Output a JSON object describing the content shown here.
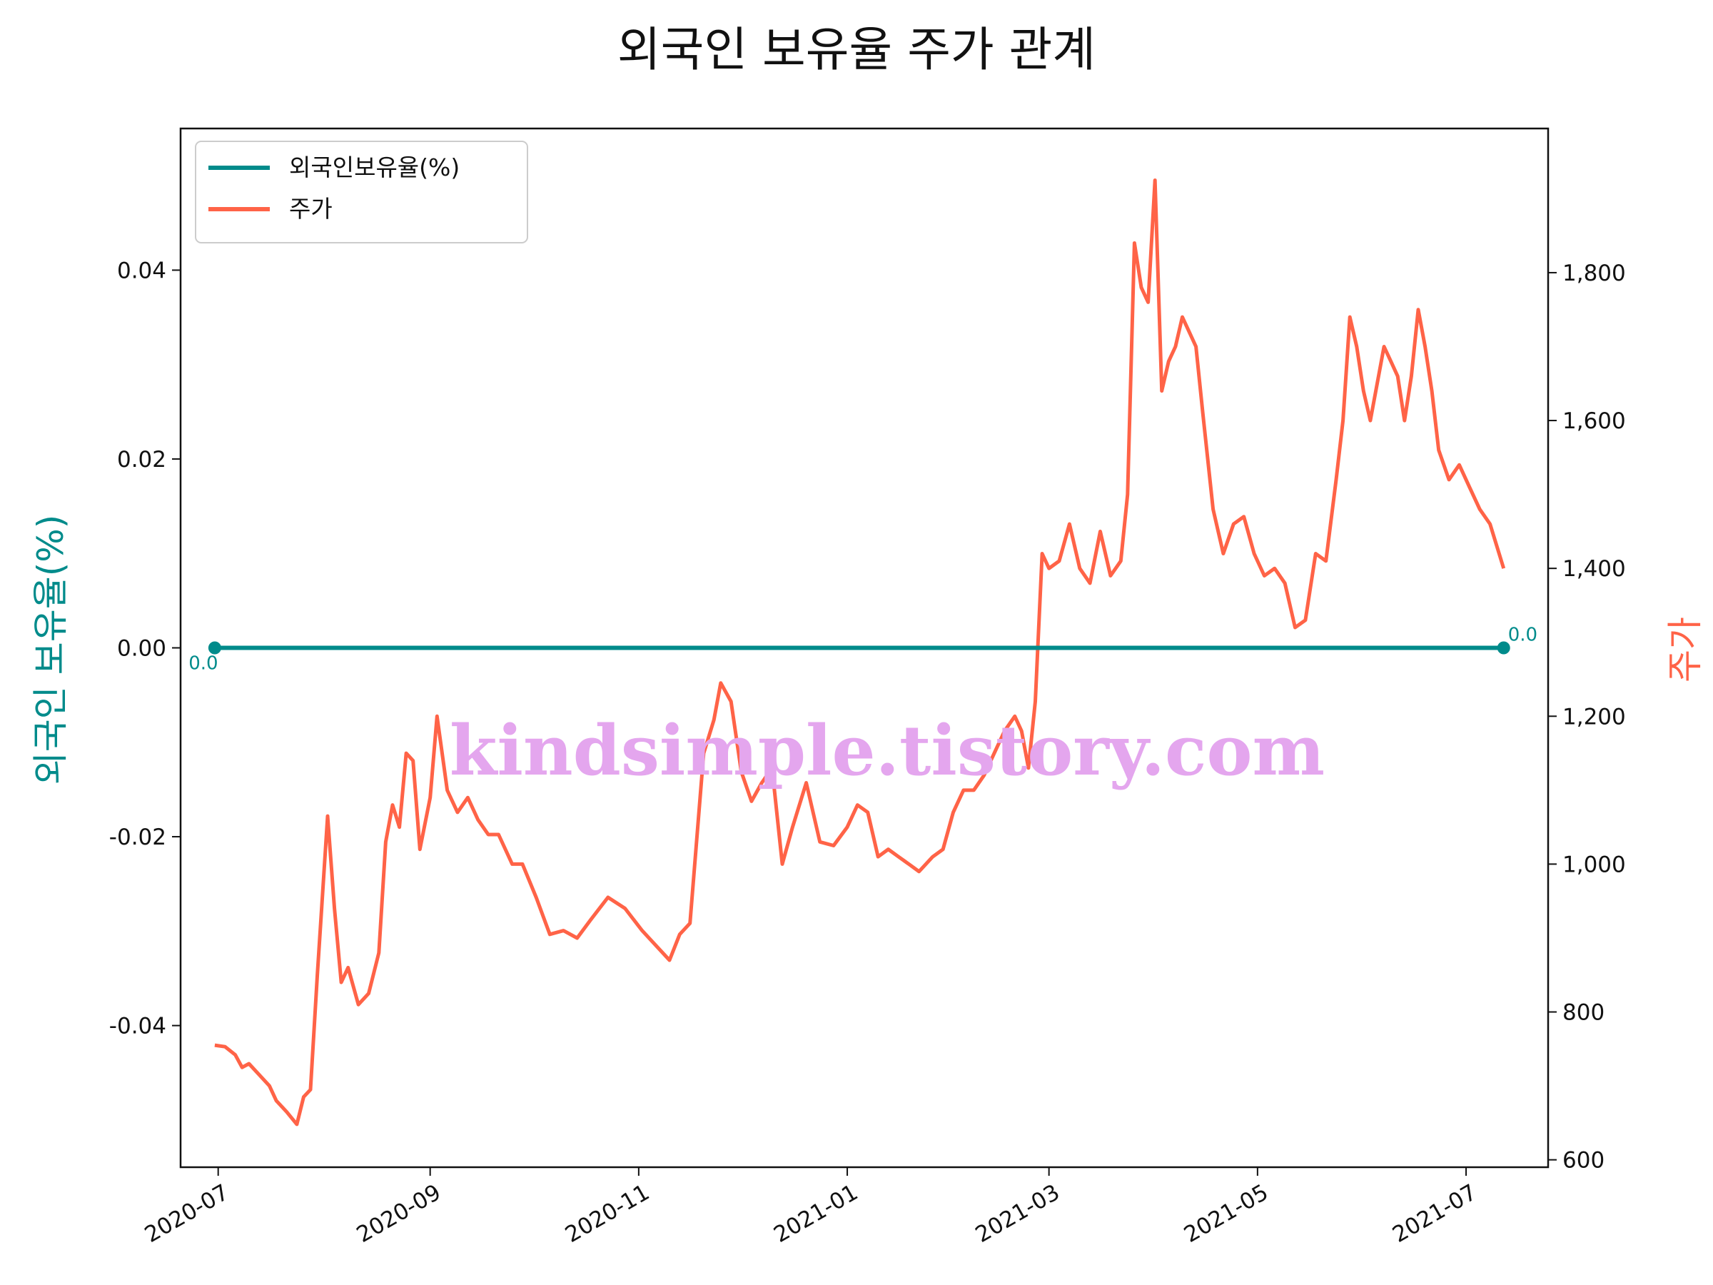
{
  "chart_data": {
    "type": "line",
    "title": "외국인 보유율 주가 관계",
    "y_left_label": "외국인 보유율(%)",
    "y_right_label": "주가",
    "x_range": [
      "2020-06-20",
      "2021-07-25"
    ],
    "y_left_range": [
      -0.055,
      0.055
    ],
    "y_right_range": [
      590,
      1995
    ],
    "x_ticks": [
      "2020-07",
      "2020-09",
      "2020-11",
      "2021-01",
      "2021-03",
      "2021-05",
      "2021-07"
    ],
    "x_tick_dates": [
      "2020-07-01",
      "2020-09-01",
      "2020-11-01",
      "2021-01-01",
      "2021-03-01",
      "2021-05-01",
      "2021-07-01"
    ],
    "y_left_ticks": [
      "0.04",
      "0.02",
      "0.00",
      "-0.02",
      "-0.04"
    ],
    "y_left_tick_values": [
      0.04,
      0.02,
      0.0,
      -0.02,
      -0.04
    ],
    "y_right_ticks": [
      "1,800",
      "1,600",
      "1,400",
      "1,200",
      "1,000",
      "800",
      "600"
    ],
    "y_right_tick_values": [
      1800,
      1600,
      1400,
      1200,
      1000,
      800,
      600
    ],
    "legend": {
      "placement": "upper-left",
      "entries": [
        "외국인보유율(%)",
        "주가"
      ]
    },
    "grid": false,
    "colors": {
      "holding": "#008b8b",
      "price": "#ff6347"
    },
    "series": [
      {
        "name": "외국인보유율(%)",
        "axis": "left",
        "x": [
          "2020-06-30",
          "2021-07-12"
        ],
        "values": [
          0.0,
          0.0
        ],
        "annotations": [
          "0.0",
          "0.0"
        ]
      },
      {
        "name": "주가",
        "axis": "right",
        "x": [
          "2020-06-30",
          "2020-07-03",
          "2020-07-06",
          "2020-07-08",
          "2020-07-10",
          "2020-07-13",
          "2020-07-16",
          "2020-07-18",
          "2020-07-21",
          "2020-07-24",
          "2020-07-26",
          "2020-07-28",
          "2020-07-30",
          "2020-08-02",
          "2020-08-04",
          "2020-08-06",
          "2020-08-08",
          "2020-08-11",
          "2020-08-14",
          "2020-08-17",
          "2020-08-19",
          "2020-08-21",
          "2020-08-23",
          "2020-08-25",
          "2020-08-27",
          "2020-08-29",
          "2020-09-01",
          "2020-09-03",
          "2020-09-06",
          "2020-09-09",
          "2020-09-12",
          "2020-09-15",
          "2020-09-18",
          "2020-09-21",
          "2020-09-25",
          "2020-09-28",
          "2020-10-02",
          "2020-10-06",
          "2020-10-10",
          "2020-10-14",
          "2020-10-18",
          "2020-10-23",
          "2020-10-28",
          "2020-11-02",
          "2020-11-05",
          "2020-11-10",
          "2020-11-13",
          "2020-11-16",
          "2020-11-20",
          "2020-11-23",
          "2020-11-25",
          "2020-11-28",
          "2020-12-01",
          "2020-12-04",
          "2020-12-07",
          "2020-12-10",
          "2020-12-13",
          "2020-12-16",
          "2020-12-20",
          "2020-12-24",
          "2020-12-28",
          "2021-01-01",
          "2021-01-04",
          "2021-01-07",
          "2021-01-10",
          "2021-01-13",
          "2021-01-16",
          "2021-01-19",
          "2021-01-22",
          "2021-01-26",
          "2021-01-29",
          "2021-02-01",
          "2021-02-04",
          "2021-02-07",
          "2021-02-10",
          "2021-02-13",
          "2021-02-16",
          "2021-02-19",
          "2021-02-21",
          "2021-02-23",
          "2021-02-25",
          "2021-02-27",
          "2021-03-01",
          "2021-03-04",
          "2021-03-07",
          "2021-03-10",
          "2021-03-13",
          "2021-03-16",
          "2021-03-19",
          "2021-03-22",
          "2021-03-24",
          "2021-03-26",
          "2021-03-28",
          "2021-03-30",
          "2021-04-01",
          "2021-04-03",
          "2021-04-05",
          "2021-04-07",
          "2021-04-09",
          "2021-04-11",
          "2021-04-13",
          "2021-04-15",
          "2021-04-18",
          "2021-04-21",
          "2021-04-24",
          "2021-04-27",
          "2021-04-30",
          "2021-05-03",
          "2021-05-06",
          "2021-05-09",
          "2021-05-12",
          "2021-05-15",
          "2021-05-18",
          "2021-05-21",
          "2021-05-24",
          "2021-05-26",
          "2021-05-28",
          "2021-05-30",
          "2021-06-01",
          "2021-06-03",
          "2021-06-05",
          "2021-06-07",
          "2021-06-09",
          "2021-06-11",
          "2021-06-13",
          "2021-06-15",
          "2021-06-17",
          "2021-06-19",
          "2021-06-21",
          "2021-06-23",
          "2021-06-26",
          "2021-06-29",
          "2021-07-02",
          "2021-07-05",
          "2021-07-08",
          "2021-07-12"
        ],
        "values": [
          755,
          753,
          742,
          725,
          730,
          715,
          700,
          680,
          665,
          648,
          685,
          695,
          850,
          1065,
          940,
          840,
          860,
          810,
          825,
          880,
          1030,
          1080,
          1050,
          1150,
          1140,
          1020,
          1090,
          1200,
          1100,
          1070,
          1090,
          1060,
          1040,
          1040,
          1000,
          1000,
          955,
          905,
          910,
          900,
          925,
          955,
          940,
          910,
          895,
          870,
          905,
          920,
          1150,
          1195,
          1245,
          1220,
          1125,
          1085,
          1110,
          1130,
          1000,
          1050,
          1110,
          1030,
          1025,
          1050,
          1080,
          1070,
          1010,
          1020,
          1010,
          1000,
          990,
          1010,
          1020,
          1070,
          1100,
          1100,
          1120,
          1150,
          1180,
          1200,
          1180,
          1130,
          1220,
          1420,
          1400,
          1410,
          1460,
          1400,
          1380,
          1450,
          1390,
          1410,
          1500,
          1840,
          1780,
          1760,
          1925,
          1640,
          1680,
          1700,
          1740,
          1720,
          1700,
          1610,
          1480,
          1420,
          1460,
          1470,
          1420,
          1390,
          1400,
          1380,
          1320,
          1330,
          1420,
          1410,
          1520,
          1600,
          1740,
          1700,
          1640,
          1600,
          1650,
          1700,
          1680,
          1660,
          1600,
          1660,
          1750,
          1700,
          1640,
          1560,
          1520,
          1540,
          1510,
          1480,
          1460,
          1400
        ]
      }
    ],
    "watermark": "kindsimple.tistory.com"
  }
}
